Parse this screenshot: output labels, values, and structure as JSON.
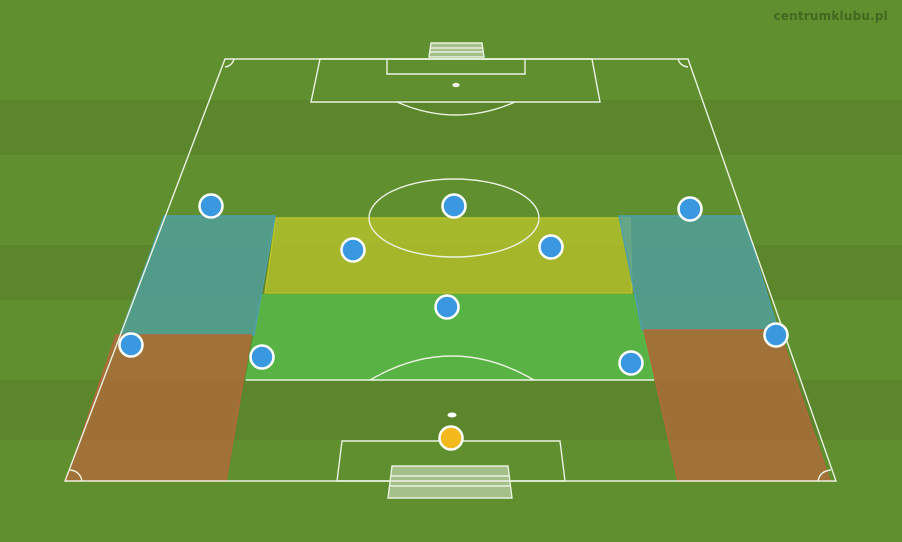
{
  "watermark": "centrumklubu.pl",
  "colors": {
    "grass": "#5f8f2e",
    "grass_dark": "#577f2b",
    "lines": "#e9f2df",
    "player": "#3a98e0",
    "player_border": "#ffffff",
    "goalkeeper": "#f2b81c",
    "zone_yellow": "#b8c22a",
    "zone_green": "#58b848",
    "zone_blue": "#4fa0a8",
    "zone_orange": "#b06a3a"
  },
  "zones": [
    {
      "name": "zone-central-midfield",
      "color": "zone_yellow"
    },
    {
      "name": "zone-defensive-midfield",
      "color": "zone_green"
    },
    {
      "name": "zone-left-flank-upper",
      "color": "zone_blue"
    },
    {
      "name": "zone-right-flank-upper",
      "color": "zone_blue"
    },
    {
      "name": "zone-left-flank-lower",
      "color": "zone_orange"
    },
    {
      "name": "zone-right-flank-lower",
      "color": "zone_orange"
    }
  ],
  "players": [
    {
      "role": "left-winger"
    },
    {
      "role": "striker"
    },
    {
      "role": "right-winger"
    },
    {
      "role": "left-central-midfielder"
    },
    {
      "role": "right-central-midfielder"
    },
    {
      "role": "defensive-midfielder"
    },
    {
      "role": "left-back"
    },
    {
      "role": "left-centre-back"
    },
    {
      "role": "right-centre-back"
    },
    {
      "role": "right-back"
    },
    {
      "role": "goalkeeper"
    }
  ]
}
